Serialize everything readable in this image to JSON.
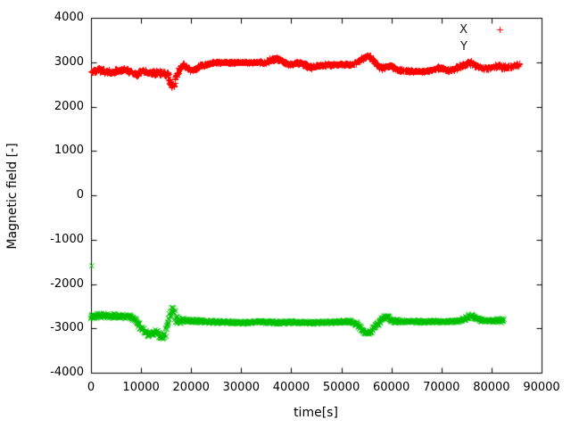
{
  "figure": {
    "background": "#ffffff",
    "border_color": "#000000",
    "text_color": "#000000"
  },
  "chart_data": {
    "type": "scatter",
    "title": "",
    "xlabel": "time[s]",
    "ylabel": "Magnetic field [-]",
    "xlim": [
      0,
      90000
    ],
    "ylim": [
      -4000,
      4000
    ],
    "xticks": [
      0,
      10000,
      20000,
      30000,
      40000,
      50000,
      60000,
      70000,
      80000,
      90000
    ],
    "yticks": [
      -4000,
      -3000,
      -2000,
      -1000,
      0,
      1000,
      2000,
      3000,
      4000
    ],
    "grid": false,
    "legend": {
      "position": "top-right",
      "entries": [
        {
          "label": "X",
          "marker": "plus",
          "color": "#ff0000",
          "sample_visible": true
        },
        {
          "label": "Y",
          "marker": "cross",
          "color": "#00c000",
          "sample_visible": false
        }
      ]
    },
    "series": [
      {
        "name": "X",
        "marker": "plus",
        "color": "#ff0000",
        "seed": 7,
        "band": [
          [
            0,
            2800,
            60
          ],
          [
            1500,
            2830,
            50
          ],
          [
            3000,
            2790,
            60
          ],
          [
            4200,
            2760,
            60
          ],
          [
            5000,
            2820,
            50
          ],
          [
            6500,
            2840,
            50
          ],
          [
            8000,
            2780,
            50
          ],
          [
            9000,
            2730,
            60
          ],
          [
            10000,
            2790,
            50
          ],
          [
            11500,
            2780,
            50
          ],
          [
            13000,
            2750,
            60
          ],
          [
            14500,
            2780,
            60
          ],
          [
            15300,
            2700,
            100
          ],
          [
            15800,
            2520,
            110
          ],
          [
            16400,
            2480,
            100
          ],
          [
            17000,
            2650,
            140
          ],
          [
            17600,
            2840,
            80
          ],
          [
            18300,
            2950,
            60
          ],
          [
            19200,
            2880,
            60
          ],
          [
            20000,
            2820,
            50
          ],
          [
            21000,
            2870,
            50
          ],
          [
            22000,
            2930,
            40
          ],
          [
            23500,
            2970,
            35
          ],
          [
            25000,
            3000,
            30
          ],
          [
            27000,
            3005,
            28
          ],
          [
            29000,
            3000,
            28
          ],
          [
            31000,
            3000,
            28
          ],
          [
            33000,
            3005,
            30
          ],
          [
            34500,
            2990,
            40
          ],
          [
            35800,
            3040,
            50
          ],
          [
            37000,
            3090,
            50
          ],
          [
            38000,
            3060,
            55
          ],
          [
            39000,
            2960,
            55
          ],
          [
            40000,
            2940,
            50
          ],
          [
            41000,
            2990,
            45
          ],
          [
            42000,
            2980,
            45
          ],
          [
            43000,
            2920,
            50
          ],
          [
            44000,
            2900,
            50
          ],
          [
            45000,
            2930,
            45
          ],
          [
            46500,
            2945,
            35
          ],
          [
            48500,
            2950,
            30
          ],
          [
            50500,
            2950,
            30
          ],
          [
            52000,
            2960,
            35
          ],
          [
            53200,
            3010,
            45
          ],
          [
            54300,
            3090,
            50
          ],
          [
            55200,
            3140,
            45
          ],
          [
            56000,
            3090,
            55
          ],
          [
            56800,
            2980,
            55
          ],
          [
            57600,
            2900,
            50
          ],
          [
            58600,
            2880,
            50
          ],
          [
            59400,
            2930,
            55
          ],
          [
            60200,
            2890,
            50
          ],
          [
            61200,
            2840,
            40
          ],
          [
            62500,
            2810,
            30
          ],
          [
            64500,
            2800,
            28
          ],
          [
            66500,
            2800,
            28
          ],
          [
            68000,
            2820,
            35
          ],
          [
            69200,
            2880,
            45
          ],
          [
            70200,
            2860,
            40
          ],
          [
            71200,
            2820,
            40
          ],
          [
            72400,
            2840,
            40
          ],
          [
            73500,
            2900,
            50
          ],
          [
            74600,
            2960,
            55
          ],
          [
            75400,
            3000,
            55
          ],
          [
            76200,
            2960,
            55
          ],
          [
            77200,
            2900,
            50
          ],
          [
            78200,
            2870,
            45
          ],
          [
            79500,
            2880,
            45
          ],
          [
            80500,
            2900,
            55
          ],
          [
            81500,
            2930,
            60
          ],
          [
            82500,
            2890,
            55
          ],
          [
            83500,
            2900,
            50
          ],
          [
            84500,
            2930,
            45
          ],
          [
            85500,
            2950,
            40
          ]
        ],
        "outliers": []
      },
      {
        "name": "Y",
        "marker": "cross",
        "color": "#00c000",
        "seed": 13,
        "band": [
          [
            0,
            -2720,
            70
          ],
          [
            2000,
            -2715,
            60
          ],
          [
            4000,
            -2720,
            60
          ],
          [
            6000,
            -2730,
            60
          ],
          [
            7800,
            -2740,
            60
          ],
          [
            9000,
            -2820,
            70
          ],
          [
            9800,
            -2960,
            70
          ],
          [
            10600,
            -3060,
            70
          ],
          [
            11500,
            -3130,
            70
          ],
          [
            12200,
            -3150,
            80
          ],
          [
            12800,
            -3080,
            80
          ],
          [
            13400,
            -3120,
            90
          ],
          [
            14000,
            -3190,
            80
          ],
          [
            14600,
            -3180,
            90
          ],
          [
            15100,
            -3000,
            180
          ],
          [
            15700,
            -2700,
            200
          ],
          [
            16300,
            -2580,
            130
          ],
          [
            16900,
            -2750,
            180
          ],
          [
            17500,
            -2830,
            80
          ],
          [
            18500,
            -2820,
            55
          ],
          [
            20000,
            -2830,
            50
          ],
          [
            22000,
            -2840,
            50
          ],
          [
            24000,
            -2850,
            45
          ],
          [
            26000,
            -2855,
            40
          ],
          [
            28000,
            -2865,
            40
          ],
          [
            30000,
            -2870,
            40
          ],
          [
            32000,
            -2860,
            40
          ],
          [
            34000,
            -2855,
            40
          ],
          [
            36000,
            -2865,
            45
          ],
          [
            38000,
            -2870,
            45
          ],
          [
            40000,
            -2865,
            40
          ],
          [
            42000,
            -2870,
            40
          ],
          [
            44000,
            -2870,
            40
          ],
          [
            46000,
            -2865,
            35
          ],
          [
            48000,
            -2860,
            35
          ],
          [
            50000,
            -2850,
            40
          ],
          [
            51800,
            -2845,
            45
          ],
          [
            53200,
            -2910,
            60
          ],
          [
            54400,
            -3060,
            65
          ],
          [
            55300,
            -3120,
            65
          ],
          [
            56100,
            -3050,
            70
          ],
          [
            56900,
            -2930,
            70
          ],
          [
            57700,
            -2840,
            75
          ],
          [
            58500,
            -2770,
            85
          ],
          [
            59300,
            -2750,
            90
          ],
          [
            60000,
            -2810,
            75
          ],
          [
            60800,
            -2850,
            60
          ],
          [
            62000,
            -2845,
            45
          ],
          [
            64000,
            -2850,
            40
          ],
          [
            66000,
            -2850,
            40
          ],
          [
            68000,
            -2850,
            40
          ],
          [
            70000,
            -2850,
            40
          ],
          [
            72000,
            -2845,
            40
          ],
          [
            73800,
            -2830,
            45
          ],
          [
            75000,
            -2770,
            70
          ],
          [
            76000,
            -2720,
            80
          ],
          [
            76800,
            -2770,
            65
          ],
          [
            77800,
            -2820,
            50
          ],
          [
            79000,
            -2825,
            45
          ],
          [
            80500,
            -2830,
            50
          ],
          [
            81800,
            -2820,
            60
          ],
          [
            82500,
            -2810,
            50
          ]
        ],
        "outliers": [
          [
            150,
            -1590
          ]
        ]
      }
    ]
  }
}
